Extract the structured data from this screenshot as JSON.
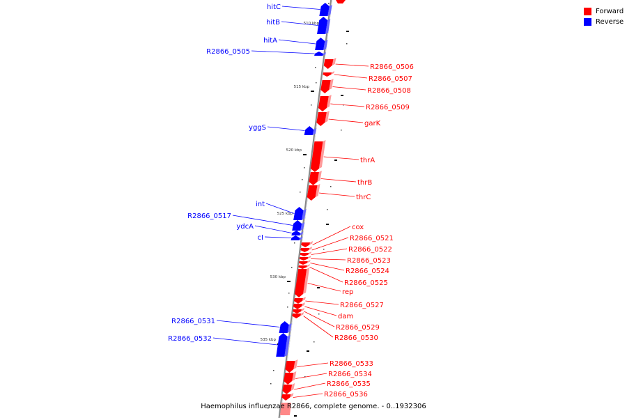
{
  "legend": {
    "forward": "Forward",
    "reverse": "Reverse"
  },
  "colors": {
    "forward": "#ff0000",
    "reverse": "#0000ff",
    "backbone": "#888888",
    "tick": "#000000"
  },
  "caption": "Haemophilus influenzae R2866, complete genome. - 0..1932306",
  "ticks": [
    {
      "label": "510 kbp",
      "kbp": 510
    },
    {
      "label": "515 kbp",
      "kbp": 515
    },
    {
      "label": "520 kbp",
      "kbp": 520
    },
    {
      "label": "525 kbp",
      "kbp": 525
    },
    {
      "label": "530 kbp",
      "kbp": 530
    },
    {
      "label": "535 kbp",
      "kbp": 535
    }
  ],
  "genes": [
    {
      "name": "hitC",
      "strand": "reverse"
    },
    {
      "name": "hitB",
      "strand": "reverse"
    },
    {
      "name": "hitA",
      "strand": "reverse"
    },
    {
      "name": "R2866_0505",
      "strand": "reverse"
    },
    {
      "name": "R2866_0506",
      "strand": "forward"
    },
    {
      "name": "R2866_0507",
      "strand": "forward"
    },
    {
      "name": "R2866_0508",
      "strand": "forward"
    },
    {
      "name": "R2866_0509",
      "strand": "forward"
    },
    {
      "name": "garK",
      "strand": "forward"
    },
    {
      "name": "yggS",
      "strand": "reverse"
    },
    {
      "name": "thrA",
      "strand": "forward"
    },
    {
      "name": "thrB",
      "strand": "forward"
    },
    {
      "name": "thrC",
      "strand": "forward"
    },
    {
      "name": "int",
      "strand": "reverse"
    },
    {
      "name": "R2866_0517",
      "strand": "reverse"
    },
    {
      "name": "ydcA",
      "strand": "reverse"
    },
    {
      "name": "cI",
      "strand": "reverse"
    },
    {
      "name": "cox",
      "strand": "forward"
    },
    {
      "name": "R2866_0521",
      "strand": "forward"
    },
    {
      "name": "R2866_0522",
      "strand": "forward"
    },
    {
      "name": "R2866_0523",
      "strand": "forward"
    },
    {
      "name": "R2866_0524",
      "strand": "forward"
    },
    {
      "name": "R2866_0525",
      "strand": "forward"
    },
    {
      "name": "rep",
      "strand": "forward"
    },
    {
      "name": "R2866_0527",
      "strand": "forward"
    },
    {
      "name": "dam",
      "strand": "forward"
    },
    {
      "name": "R2866_0529",
      "strand": "forward"
    },
    {
      "name": "R2866_0530",
      "strand": "forward"
    },
    {
      "name": "R2866_0531",
      "strand": "reverse"
    },
    {
      "name": "R2866_0532",
      "strand": "reverse"
    },
    {
      "name": "R2866_0533",
      "strand": "forward"
    },
    {
      "name": "R2866_0534",
      "strand": "forward"
    },
    {
      "name": "R2866_0535",
      "strand": "forward"
    },
    {
      "name": "R2866_0536",
      "strand": "forward"
    }
  ]
}
